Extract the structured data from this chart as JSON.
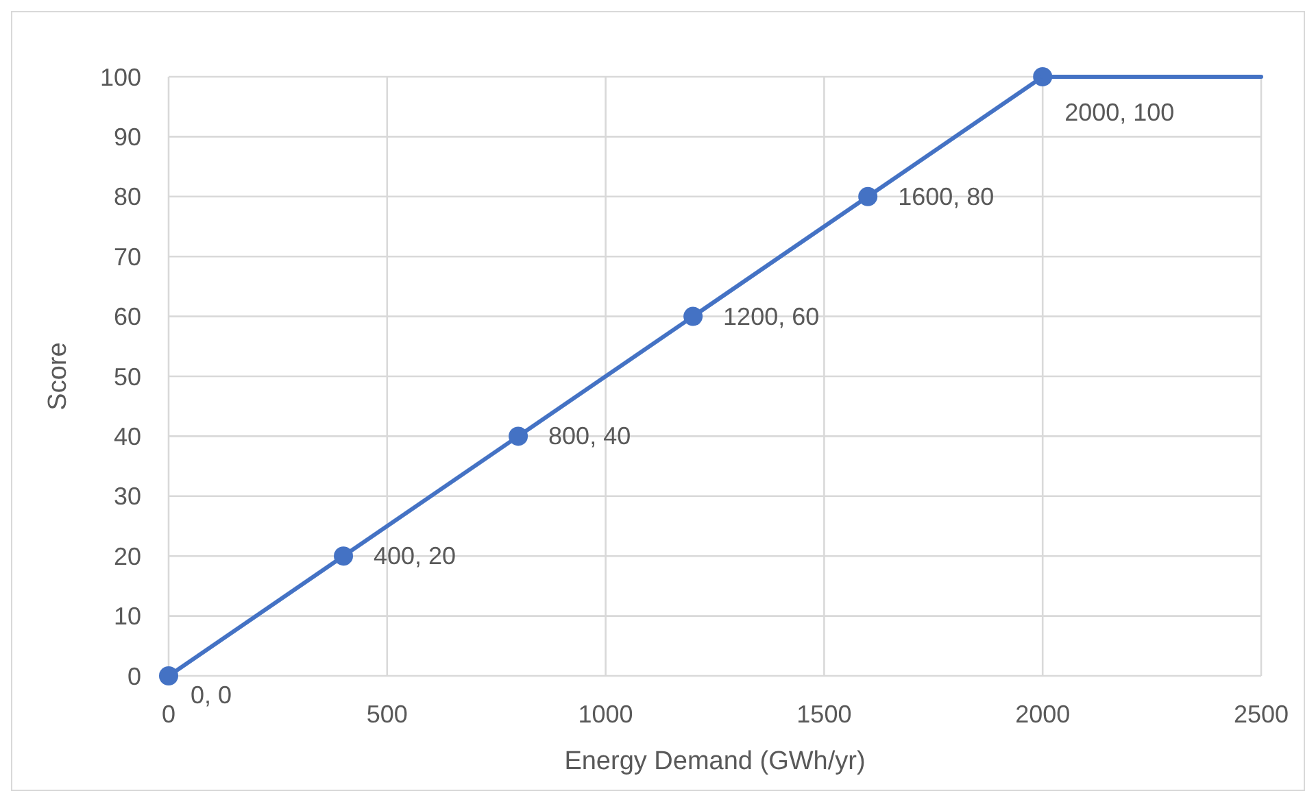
{
  "chart_data": {
    "type": "line",
    "xlabel": "Energy Demand (GWh/yr)",
    "ylabel": "Score",
    "xlim": [
      0,
      2500
    ],
    "xticks": [
      0,
      500,
      1000,
      1500,
      2000,
      2500
    ],
    "ylim": [
      0,
      100
    ],
    "yticks": [
      0,
      10,
      20,
      30,
      40,
      50,
      60,
      70,
      80,
      90,
      100
    ],
    "grid": true,
    "line_style": "solid",
    "series": [
      {
        "color": "#4472c4",
        "marker": "circle",
        "x": [
          0,
          400,
          800,
          1200,
          1600,
          2000
        ],
        "values": [
          0,
          20,
          40,
          60,
          80,
          100
        ],
        "value_labels": [
          "0, 0",
          "400, 20",
          "800, 40",
          "1200, 60",
          "1600, 80",
          "2000, 100"
        ]
      },
      {
        "color": "#4472c4",
        "marker": "none",
        "x": [
          2000,
          2500
        ],
        "values": [
          100,
          100
        ]
      }
    ]
  }
}
